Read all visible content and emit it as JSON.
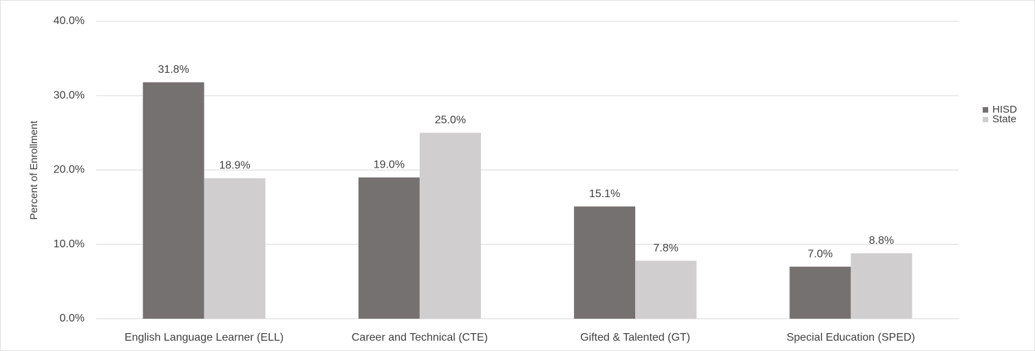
{
  "chart_data": {
    "type": "bar",
    "y_label": "Percent of Enrollment",
    "categories": [
      "English Language Learner (ELL)",
      "Career and Technical (CTE)",
      "Gifted & Talented (GT)",
      "Special Education (SPED)"
    ],
    "series": [
      {
        "name": "HISD",
        "color": "#767171",
        "values": [
          31.8,
          19.0,
          15.1,
          7.0
        ],
        "value_labels": [
          "31.8%",
          "19.0%",
          "15.1%",
          "7.0%"
        ]
      },
      {
        "name": "State",
        "color": "#d0cece",
        "values": [
          18.9,
          25.0,
          7.8,
          8.8
        ],
        "value_labels": [
          "18.9%",
          "25.0%",
          "7.8%",
          "8.8%"
        ]
      }
    ],
    "ylim": [
      0,
      40
    ],
    "yticks": [
      {
        "value": 0,
        "label": "0.0%"
      },
      {
        "value": 10,
        "label": "10.0%"
      },
      {
        "value": 20,
        "label": "20.0%"
      },
      {
        "value": 30,
        "label": "30.0%"
      },
      {
        "value": 40,
        "label": "40.0%"
      }
    ],
    "grid": true,
    "legend": "right"
  }
}
